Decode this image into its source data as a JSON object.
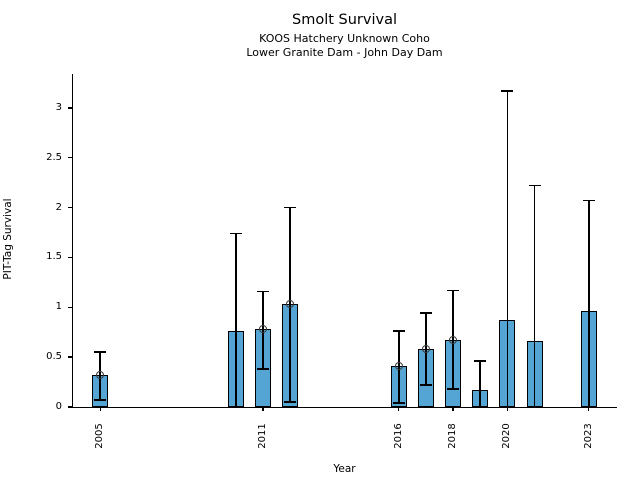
{
  "header": {
    "title": "Smolt Survival",
    "subtitle1": "KOOS Hatchery Unknown Coho",
    "subtitle2": "Lower Granite Dam - John Day Dam"
  },
  "chart_data": {
    "type": "bar",
    "title": "Smolt Survival",
    "subtitle": [
      "KOOS Hatchery Unknown Coho",
      "Lower Granite Dam - John Day Dam"
    ],
    "xlabel": "Year",
    "ylabel": "PIT-Tag Survival",
    "xlim": [
      2004,
      2024
    ],
    "ylim": [
      0,
      3.34
    ],
    "x_ticks": [
      2005,
      2011,
      2016,
      2018,
      2020,
      2023
    ],
    "y_ticks": [
      0,
      0.5,
      1,
      1.5,
      2,
      2.5,
      3
    ],
    "grid": false,
    "legend": null,
    "colors": {
      "bar_fill": "#54A5D4",
      "bar_edge": "#000000",
      "error_bar": "#000000",
      "marker_edge": "#3a3a3a"
    },
    "series": [
      {
        "name": "PIT-Tag Survival",
        "x": [
          2005,
          2010,
          2011,
          2012,
          2016,
          2017,
          2018,
          2019,
          2020,
          2021,
          2023
        ],
        "values": [
          0.32,
          0.76,
          0.78,
          1.03,
          0.41,
          0.58,
          0.67,
          0.17,
          0.87,
          0.66,
          0.96
        ],
        "ci_low": [
          0.07,
          0.0,
          0.38,
          0.05,
          0.04,
          0.22,
          0.18,
          0.0,
          0.0,
          0.0,
          0.0
        ],
        "ci_high": [
          0.55,
          1.74,
          1.16,
          2.0,
          0.76,
          0.94,
          1.17,
          0.46,
          3.17,
          2.22,
          2.07
        ],
        "marker": [
          true,
          false,
          true,
          true,
          true,
          true,
          true,
          false,
          false,
          false,
          false
        ]
      }
    ]
  }
}
